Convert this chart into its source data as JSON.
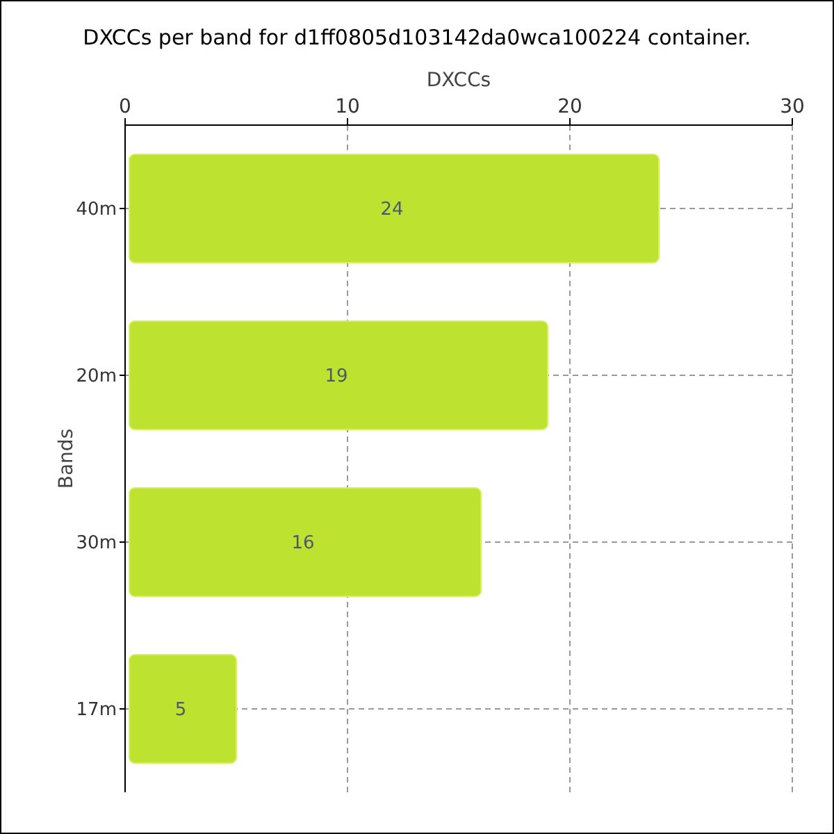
{
  "chart_data": {
    "type": "bar",
    "orientation": "horizontal",
    "title": "DXCCs per band for d1ff0805d103142da0wca100224 container.",
    "xlabel": "DXCCs",
    "ylabel": "Bands",
    "categories": [
      "40m",
      "20m",
      "30m",
      "17m"
    ],
    "values": [
      24,
      19,
      16,
      5
    ],
    "color": "#bde22f",
    "xlim": [
      0,
      30
    ],
    "xticks": [
      0,
      10,
      20,
      30
    ],
    "grid": true,
    "data_labels": true
  }
}
